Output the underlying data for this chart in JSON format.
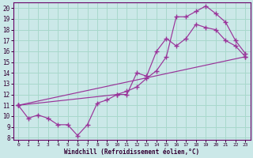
{
  "xlabel": "Windchill (Refroidissement éolien,°C)",
  "bg_color": "#cbe8e8",
  "grid_color": "#a8d8cc",
  "line_color": "#993399",
  "xlim": [
    -0.5,
    23.5
  ],
  "ylim": [
    7.8,
    20.5
  ],
  "xticks": [
    0,
    1,
    2,
    3,
    4,
    5,
    6,
    7,
    8,
    9,
    10,
    11,
    12,
    13,
    14,
    15,
    16,
    17,
    18,
    19,
    20,
    21,
    22,
    23
  ],
  "yticks": [
    8,
    9,
    10,
    11,
    12,
    13,
    14,
    15,
    16,
    17,
    18,
    19,
    20
  ],
  "line1_x": [
    0,
    1,
    2,
    3,
    4,
    5,
    6,
    7,
    8,
    9,
    10,
    11,
    12,
    13,
    14,
    15,
    16,
    17,
    18,
    19,
    20,
    21,
    22,
    23
  ],
  "line1_y": [
    11.0,
    9.8,
    10.1,
    9.8,
    9.2,
    9.2,
    8.2,
    9.2,
    11.2,
    11.5,
    12.0,
    12.0,
    14.0,
    13.7,
    16.0,
    17.2,
    16.5,
    17.2,
    18.5,
    18.2,
    18.0,
    17.0,
    16.5,
    15.5
  ],
  "line2_x": [
    0,
    23
  ],
  "line2_y": [
    11.0,
    15.5
  ],
  "line3_x": [
    0,
    10,
    11,
    12,
    13,
    14,
    15,
    16,
    17,
    18,
    19,
    20,
    21,
    22,
    23
  ],
  "line3_y": [
    11.0,
    12.0,
    12.3,
    12.7,
    13.5,
    14.2,
    15.5,
    19.2,
    19.2,
    19.7,
    20.2,
    19.5,
    18.7,
    17.0,
    15.8
  ]
}
